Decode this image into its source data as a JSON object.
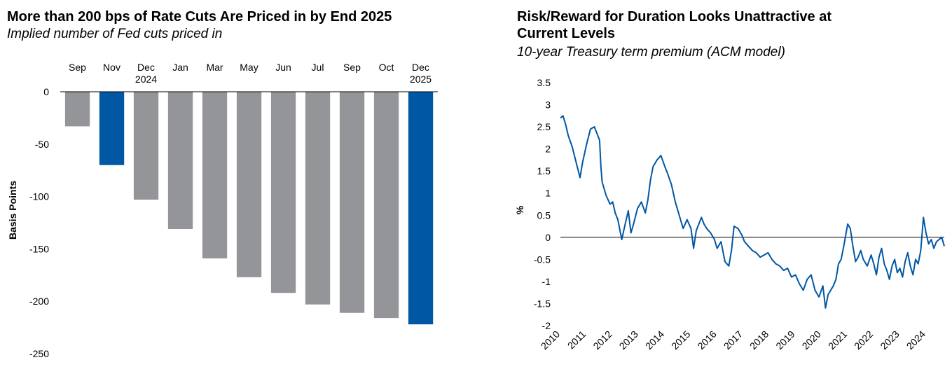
{
  "left": {
    "title": "More than 200 bps of Rate Cuts Are Priced in by End 2025",
    "subtitle": "Implied number of Fed cuts priced in"
  },
  "right": {
    "title": "Risk/Reward for Duration Looks Unattractive at Current Levels",
    "subtitle": "10-year Treasury term premium (ACM model)"
  },
  "chart_data": [
    {
      "type": "bar",
      "title": "More than 200 bps of Rate Cuts Are Priced in by End 2025",
      "subtitle": "Implied number of Fed cuts priced in",
      "categories": [
        [
          "Sep"
        ],
        [
          "Nov"
        ],
        [
          "Dec",
          "2024"
        ],
        [
          "Jan"
        ],
        [
          "Mar"
        ],
        [
          "May"
        ],
        [
          "Jun"
        ],
        [
          "Jul"
        ],
        [
          "Sep"
        ],
        [
          "Oct"
        ],
        [
          "Dec",
          "2025"
        ]
      ],
      "values": [
        -33,
        -70,
        -103,
        -131,
        -159,
        -177,
        -192,
        -203,
        -211,
        -216,
        -222
      ],
      "highlight": [
        false,
        true,
        false,
        false,
        false,
        false,
        false,
        false,
        false,
        false,
        true
      ],
      "colors": {
        "default": "#939598",
        "highlight": "#0057a4"
      },
      "xlabel": "",
      "ylabel": "Basis Points",
      "ylim": [
        -250,
        0
      ],
      "yticks": [
        0,
        -50,
        -100,
        -150,
        -200,
        -250
      ],
      "axis_position": "top",
      "grid": false
    },
    {
      "type": "line",
      "title": "Risk/Reward for Duration Looks Unattractive at Current Levels",
      "subtitle": "10-year Treasury term premium (ACM model)",
      "series": [
        {
          "color": "#0057a4",
          "x": [
            2010.0,
            2010.1,
            2010.2,
            2010.3,
            2010.45,
            2010.6,
            2010.75,
            2010.85,
            2011.0,
            2011.15,
            2011.3,
            2011.4,
            2011.5,
            2011.55,
            2011.6,
            2011.75,
            2011.9,
            2012.0,
            2012.1,
            2012.2,
            2012.35,
            2012.5,
            2012.6,
            2012.7,
            2012.8,
            2012.95,
            2013.1,
            2013.25,
            2013.35,
            2013.45,
            2013.55,
            2013.7,
            2013.85,
            2014.0,
            2014.1,
            2014.25,
            2014.4,
            2014.55,
            2014.7,
            2014.85,
            2015.0,
            2015.1,
            2015.2,
            2015.4,
            2015.5,
            2015.6,
            2015.75,
            2015.9,
            2016.0,
            2016.15,
            2016.3,
            2016.45,
            2016.55,
            2016.65,
            2016.8,
            2016.95,
            2017.05,
            2017.2,
            2017.35,
            2017.5,
            2017.65,
            2017.8,
            2017.95,
            2018.1,
            2018.25,
            2018.4,
            2018.55,
            2018.7,
            2018.85,
            2019.0,
            2019.15,
            2019.3,
            2019.45,
            2019.6,
            2019.75,
            2019.9,
            2020.05,
            2020.15,
            2020.25,
            2020.35,
            2020.45,
            2020.55,
            2020.65,
            2020.75,
            2020.85,
            2021.0,
            2021.1,
            2021.2,
            2021.3,
            2021.4,
            2021.5,
            2021.6,
            2021.75,
            2021.9,
            2022.0,
            2022.1,
            2022.2,
            2022.3,
            2022.4,
            2022.5,
            2022.6,
            2022.7,
            2022.8,
            2022.9,
            2023.0,
            2023.1,
            2023.2,
            2023.3,
            2023.4,
            2023.5,
            2023.6,
            2023.7,
            2023.8,
            2023.9,
            2024.0,
            2024.1,
            2024.2,
            2024.3,
            2024.4,
            2024.5,
            2024.6,
            2024.7
          ],
          "y": [
            2.7,
            2.75,
            2.55,
            2.3,
            2.05,
            1.7,
            1.35,
            1.7,
            2.1,
            2.45,
            2.5,
            2.35,
            2.2,
            1.6,
            1.25,
            0.95,
            0.75,
            0.8,
            0.55,
            0.4,
            -0.05,
            0.35,
            0.6,
            0.1,
            0.3,
            0.65,
            0.8,
            0.55,
            0.85,
            1.3,
            1.6,
            1.75,
            1.85,
            1.6,
            1.45,
            1.2,
            0.8,
            0.5,
            0.2,
            0.4,
            0.2,
            -0.25,
            0.15,
            0.45,
            0.3,
            0.2,
            0.1,
            -0.05,
            -0.25,
            -0.1,
            -0.55,
            -0.65,
            -0.3,
            0.25,
            0.2,
            0.05,
            -0.1,
            -0.2,
            -0.3,
            -0.35,
            -0.45,
            -0.4,
            -0.35,
            -0.5,
            -0.6,
            -0.65,
            -0.75,
            -0.7,
            -0.9,
            -0.85,
            -1.05,
            -1.2,
            -0.95,
            -0.85,
            -1.2,
            -1.35,
            -1.1,
            -1.6,
            -1.3,
            -1.2,
            -1.1,
            -0.95,
            -0.6,
            -0.5,
            -0.2,
            0.3,
            0.2,
            -0.2,
            -0.55,
            -0.45,
            -0.3,
            -0.5,
            -0.65,
            -0.4,
            -0.6,
            -0.85,
            -0.45,
            -0.25,
            -0.6,
            -0.75,
            -0.95,
            -0.65,
            -0.5,
            -0.8,
            -0.7,
            -0.9,
            -0.55,
            -0.35,
            -0.65,
            -0.85,
            -0.5,
            -0.6,
            -0.3,
            0.45,
            0.1,
            -0.15,
            -0.05,
            -0.25,
            -0.1,
            -0.05,
            0.0,
            -0.2
          ]
        }
      ],
      "xlabel": "",
      "ylabel": "%",
      "xlim": [
        2010,
        2024.7
      ],
      "xticks": [
        2010,
        2011,
        2012,
        2013,
        2014,
        2015,
        2016,
        2017,
        2018,
        2019,
        2020,
        2021,
        2022,
        2023,
        2024
      ],
      "ylim": [
        -2,
        3.5
      ],
      "yticks": [
        3.5,
        3,
        2.5,
        2,
        1.5,
        1,
        0.5,
        0,
        -0.5,
        -1,
        -1.5,
        -2
      ],
      "zero_line": true,
      "grid": false
    }
  ]
}
